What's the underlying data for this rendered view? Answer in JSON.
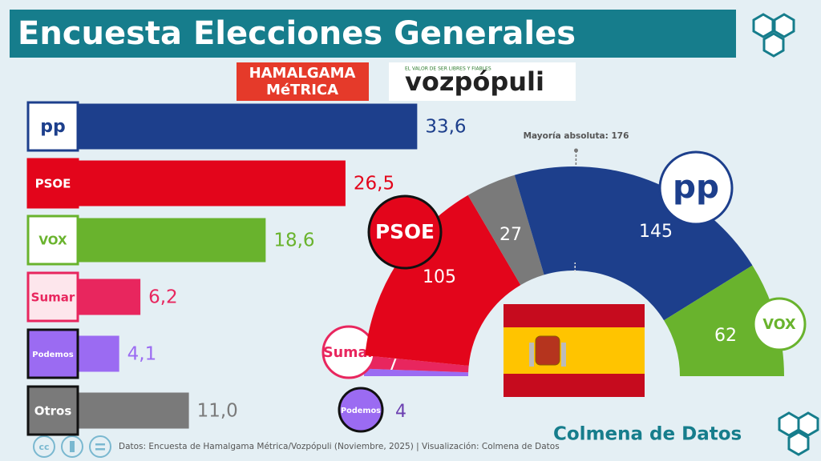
{
  "header": {
    "title": "Encuesta Elecciones Generales"
  },
  "logos": {
    "pollster": [
      "HAMALGAMA",
      "MéTRICA"
    ],
    "media_tagline": "EL VALOR DE SER LIBRES Y FIABLES",
    "media": "vozpópuli"
  },
  "chart_data": [
    {
      "type": "bar",
      "orientation": "horizontal",
      "categories": [
        "pp",
        "PSOE",
        "VOX",
        "Sumar",
        "Podemos",
        "Otros"
      ],
      "values": [
        33.6,
        26.5,
        18.6,
        6.2,
        4.1,
        11.0
      ],
      "value_labels": [
        "33,6",
        "26,5",
        "18,6",
        "6,2",
        "4,1",
        "11,0"
      ],
      "colors": [
        "#1d3f8c",
        "#e3051b",
        "#69b32d",
        "#e8265e",
        "#9b6bf2",
        "#7a7a7a"
      ]
    },
    {
      "type": "semicircle",
      "categories": [
        "Podemos",
        "Sumar",
        "PSOE",
        "Otros",
        "pp",
        "VOX"
      ],
      "values": [
        4,
        7,
        105,
        27,
        145,
        62
      ],
      "colors": [
        "#9b6bf2",
        "#e8265e",
        "#e3051b",
        "#7a7a7a",
        "#1d3f8c",
        "#69b32d"
      ],
      "majority": 176,
      "annotation": "Mayoría absoluta: 176"
    }
  ],
  "footer": {
    "license": "cc",
    "source": "Datos: Encuesta de Hamalgama Métrica/Vozpópuli (Noviembre, 2025) | Visualización: Colmena de Datos",
    "brand": "Colmena de Datos"
  }
}
